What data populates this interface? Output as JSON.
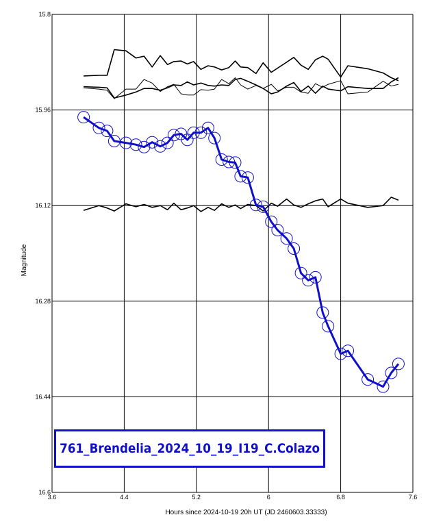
{
  "chart_data": {
    "type": "line",
    "xlabel": "Hours since 2024-10-19 20h UT (JD 2460603.33333)",
    "ylabel": "Magnitude",
    "xlim": [
      3.6,
      7.6
    ],
    "ylim": [
      15.8,
      16.6
    ],
    "y_inverted": true,
    "grid": true,
    "x_ticks": [
      "3.6",
      "4.4",
      "5.2",
      "6",
      "6.8",
      "7.6"
    ],
    "y_ticks": [
      "15.8",
      "15.96",
      "16.12",
      "16.28",
      "16.44",
      "16.6"
    ],
    "annotation": "761_Brendelia_2024_10_19_I19_C.Colazo",
    "colors": {
      "target": "#1010c8",
      "comparison": "#000000",
      "grid": "#000000"
    },
    "series": [
      {
        "role": "target",
        "markers": "open-circle",
        "x": [
          3.95,
          4.12,
          4.21,
          4.29,
          4.42,
          4.53,
          4.62,
          4.71,
          4.8,
          4.88,
          4.95,
          5.03,
          5.1,
          5.17,
          5.25,
          5.33,
          5.4,
          5.48,
          5.56,
          5.63,
          5.69,
          5.77,
          5.86,
          5.94,
          6.03,
          6.1,
          6.2,
          6.28,
          6.36,
          6.44,
          6.52,
          6.6,
          6.66,
          6.8,
          6.88,
          7.1,
          7.27,
          7.36,
          7.44
        ],
        "y": [
          15.972,
          15.99,
          15.995,
          16.012,
          16.015,
          16.018,
          16.022,
          16.014,
          16.021,
          16.015,
          16.002,
          16.0,
          16.01,
          15.998,
          15.998,
          15.99,
          16.007,
          16.043,
          16.047,
          16.048,
          16.071,
          16.073,
          16.119,
          16.122,
          16.147,
          16.161,
          16.175,
          16.192,
          16.233,
          16.245,
          16.24,
          16.299,
          16.322,
          16.368,
          16.363,
          16.411,
          16.423,
          16.4,
          16.385
        ]
      },
      {
        "role": "comparison",
        "x": [
          3.95,
          4.12,
          4.21,
          4.29,
          4.42,
          4.53,
          4.62,
          4.71,
          4.8,
          4.88,
          4.95,
          5.03,
          5.1,
          5.17,
          5.25,
          5.33,
          5.4,
          5.48,
          5.56,
          5.63,
          5.69,
          5.77,
          5.86,
          5.94,
          6.03,
          6.1,
          6.2,
          6.28,
          6.36,
          6.44,
          6.52,
          6.6,
          6.66,
          6.8,
          6.88,
          7.1,
          7.27,
          7.36,
          7.44
        ],
        "y": [
          15.903,
          15.902,
          15.902,
          15.859,
          15.861,
          15.873,
          15.87,
          15.888,
          15.869,
          15.884,
          15.879,
          15.878,
          15.883,
          15.879,
          15.892,
          15.886,
          15.888,
          15.893,
          15.889,
          15.878,
          15.888,
          15.889,
          15.899,
          15.881,
          15.897,
          15.89,
          15.88,
          15.872,
          15.885,
          15.892,
          15.876,
          15.87,
          15.875,
          15.905,
          15.886,
          15.891,
          15.898,
          15.906,
          15.911
        ]
      },
      {
        "role": "comparison",
        "x": [
          3.95,
          4.12,
          4.21,
          4.29,
          4.42,
          4.53,
          4.62,
          4.71,
          4.8,
          4.88,
          4.95,
          5.03,
          5.1,
          5.17,
          5.25,
          5.33,
          5.4,
          5.48,
          5.56,
          5.63,
          5.69,
          5.77,
          5.86,
          5.94,
          6.03,
          6.1,
          6.2,
          6.28,
          6.36,
          6.44,
          6.52,
          6.6,
          6.66,
          6.8,
          6.88,
          7.1,
          7.27,
          7.36,
          7.44
        ],
        "y": [
          15.923,
          15.925,
          15.927,
          15.941,
          15.925,
          15.925,
          15.909,
          15.915,
          15.929,
          15.921,
          15.917,
          15.933,
          15.935,
          15.935,
          15.926,
          15.927,
          15.925,
          15.909,
          15.916,
          15.906,
          15.918,
          15.925,
          15.919,
          15.924,
          15.917,
          15.928,
          15.922,
          15.922,
          15.93,
          15.932,
          15.916,
          15.922,
          15.917,
          15.911,
          15.933,
          15.93,
          15.912,
          15.92,
          15.917
        ]
      },
      {
        "role": "comparison",
        "x": [
          3.95,
          4.12,
          4.21,
          4.29,
          4.42,
          4.53,
          4.62,
          4.71,
          4.8,
          4.88,
          4.95,
          5.03,
          5.1,
          5.17,
          5.25,
          5.33,
          5.4,
          5.48,
          5.56,
          5.63,
          5.69,
          5.77,
          5.86,
          5.94,
          6.03,
          6.1,
          6.2,
          6.28,
          6.36,
          6.44,
          6.52,
          6.6,
          6.66,
          6.8,
          6.88,
          7.1,
          7.27,
          7.36,
          7.44
        ],
        "y": [
          15.921,
          15.922,
          15.923,
          15.94,
          15.935,
          15.93,
          15.924,
          15.924,
          15.927,
          15.923,
          15.918,
          15.919,
          15.913,
          15.918,
          15.915,
          15.919,
          15.92,
          15.918,
          15.919,
          15.909,
          15.907,
          15.912,
          15.918,
          15.924,
          15.933,
          15.93,
          15.92,
          15.914,
          15.929,
          15.92,
          15.932,
          15.92,
          15.925,
          15.928,
          15.921,
          15.924,
          15.924,
          15.913,
          15.906
        ]
      },
      {
        "role": "comparison",
        "x": [
          3.95,
          4.12,
          4.21,
          4.29,
          4.42,
          4.53,
          4.62,
          4.71,
          4.8,
          4.88,
          4.95,
          5.03,
          5.1,
          5.17,
          5.25,
          5.33,
          5.4,
          5.48,
          5.56,
          5.63,
          5.69,
          5.77,
          5.86,
          5.94,
          6.03,
          6.1,
          6.2,
          6.28,
          6.36,
          6.44,
          6.52,
          6.6,
          6.66,
          6.8,
          6.88,
          7.1,
          7.27,
          7.36,
          7.44
        ],
        "y": [
          16.128,
          16.12,
          16.124,
          16.129,
          16.117,
          16.122,
          16.118,
          16.123,
          16.12,
          16.127,
          16.116,
          16.127,
          16.124,
          16.12,
          16.13,
          16.123,
          16.128,
          16.117,
          16.123,
          16.119,
          16.125,
          16.118,
          16.12,
          16.129,
          16.116,
          16.121,
          16.109,
          16.119,
          16.123,
          16.117,
          16.112,
          16.109,
          16.122,
          16.109,
          16.116,
          16.123,
          16.12,
          16.106,
          16.111
        ]
      }
    ]
  }
}
